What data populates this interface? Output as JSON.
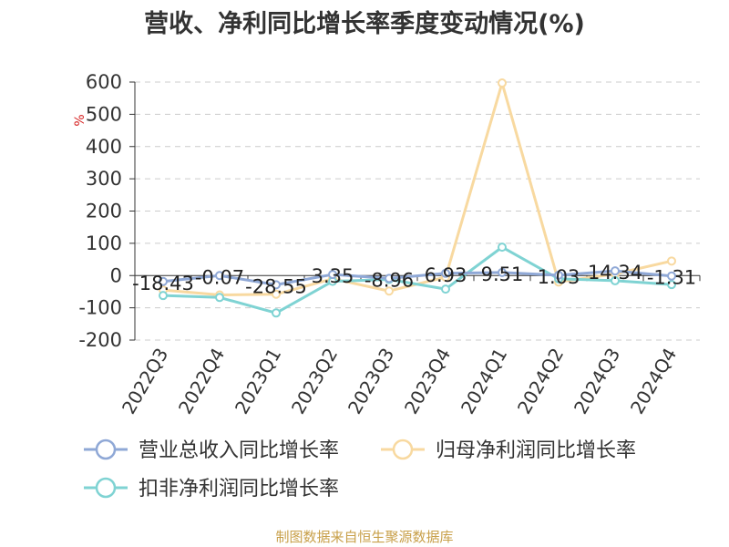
{
  "chart_data": {
    "type": "line",
    "title": "营收、净利同比增长率季度变动情况(%)",
    "ylabel": "%",
    "ylim": [
      -200,
      600
    ],
    "yticks": [
      -200,
      -100,
      0,
      100,
      200,
      300,
      400,
      500,
      600
    ],
    "grid": true,
    "legend_position": "bottom",
    "categories": [
      "2022Q3",
      "2022Q4",
      "2023Q1",
      "2023Q2",
      "2023Q3",
      "2023Q4",
      "2024Q1",
      "2024Q2",
      "2024Q3",
      "2024Q4"
    ],
    "series": [
      {
        "name": "营业总收入同比增长率",
        "color": "#8fa8d6",
        "values": [
          -18.43,
          -0.07,
          -28.55,
          3.35,
          -8.96,
          6.93,
          9.51,
          1.03,
          14.34,
          -1.31
        ],
        "labels": [
          "-18.43",
          "-0.07",
          "-28.55",
          "3.35",
          "-8.96",
          "6.93",
          "9.51",
          "1.03",
          "14.34",
          "-1.31"
        ]
      },
      {
        "name": "归母净利润同比增长率",
        "color": "#f8d9a0",
        "values": [
          -45,
          -60,
          -58,
          -10,
          -48,
          -5,
          597,
          -20,
          5,
          45
        ]
      },
      {
        "name": "扣非净利润同比增长率",
        "color": "#7fd3d3",
        "values": [
          -62,
          -68,
          -116,
          -18,
          -12,
          -42,
          88,
          -10,
          -16,
          -28
        ]
      }
    ]
  },
  "source": "制图数据来自恒生聚源数据库"
}
